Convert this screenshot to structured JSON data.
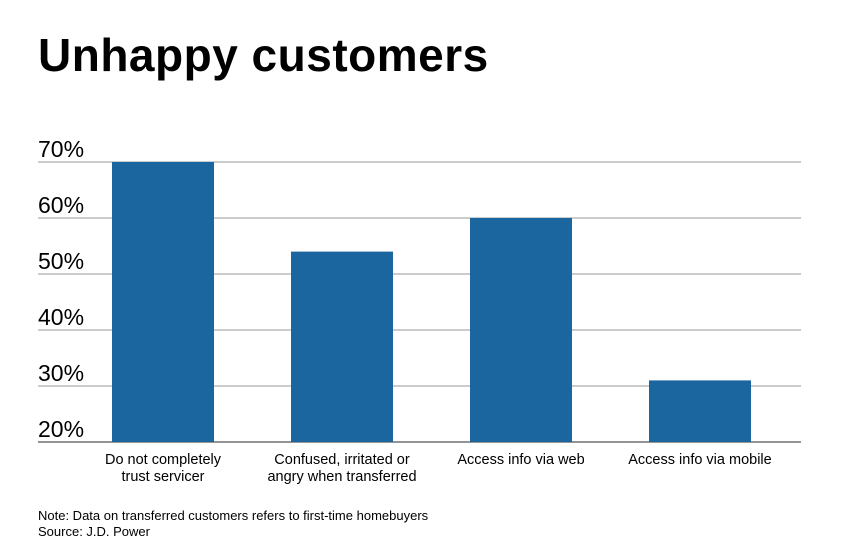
{
  "chart_data": {
    "type": "bar",
    "title": "Unhappy customers",
    "categories": [
      [
        "Do not completely",
        "trust servicer"
      ],
      [
        "Confused, irritated or",
        "angry when transferred"
      ],
      [
        "Access info via web"
      ],
      [
        "Access info via mobile"
      ]
    ],
    "values": [
      70,
      54,
      60,
      31
    ],
    "ylim": [
      20,
      70
    ],
    "yticks": [
      20,
      30,
      40,
      50,
      60,
      70
    ],
    "ytick_labels": [
      "20%",
      "30%",
      "40%",
      "50%",
      "60%",
      "70%"
    ],
    "grid": true,
    "bar_color": "#1c66a0",
    "xlabel": "",
    "ylabel": ""
  },
  "footnotes": {
    "note": "Note: Data on transferred customers refers to first-time homebuyers",
    "source": "Source: J.D. Power"
  }
}
